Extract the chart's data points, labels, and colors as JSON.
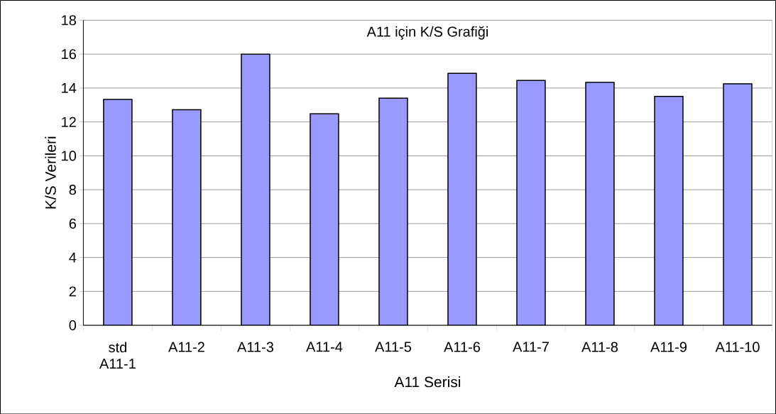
{
  "chart_data": {
    "type": "bar",
    "title": "A11 için K/S Grafiği",
    "xlabel": "A11 Serisi",
    "ylabel": "K/S Verileri",
    "categories": [
      "std A11-1",
      "A11-2",
      "A11-3",
      "A11-4",
      "A11-5",
      "A11-6",
      "A11-7",
      "A11-8",
      "A11-9",
      "A11-10"
    ],
    "values": [
      13.33,
      12.72,
      16,
      12.48,
      13.4,
      14.87,
      14.45,
      14.33,
      13.5,
      14.25
    ],
    "color": "#9999ff",
    "ylim": [
      0,
      18
    ],
    "yticks": [
      0,
      2,
      4,
      6,
      8,
      10,
      12,
      14,
      16,
      18
    ],
    "grid": "y"
  }
}
